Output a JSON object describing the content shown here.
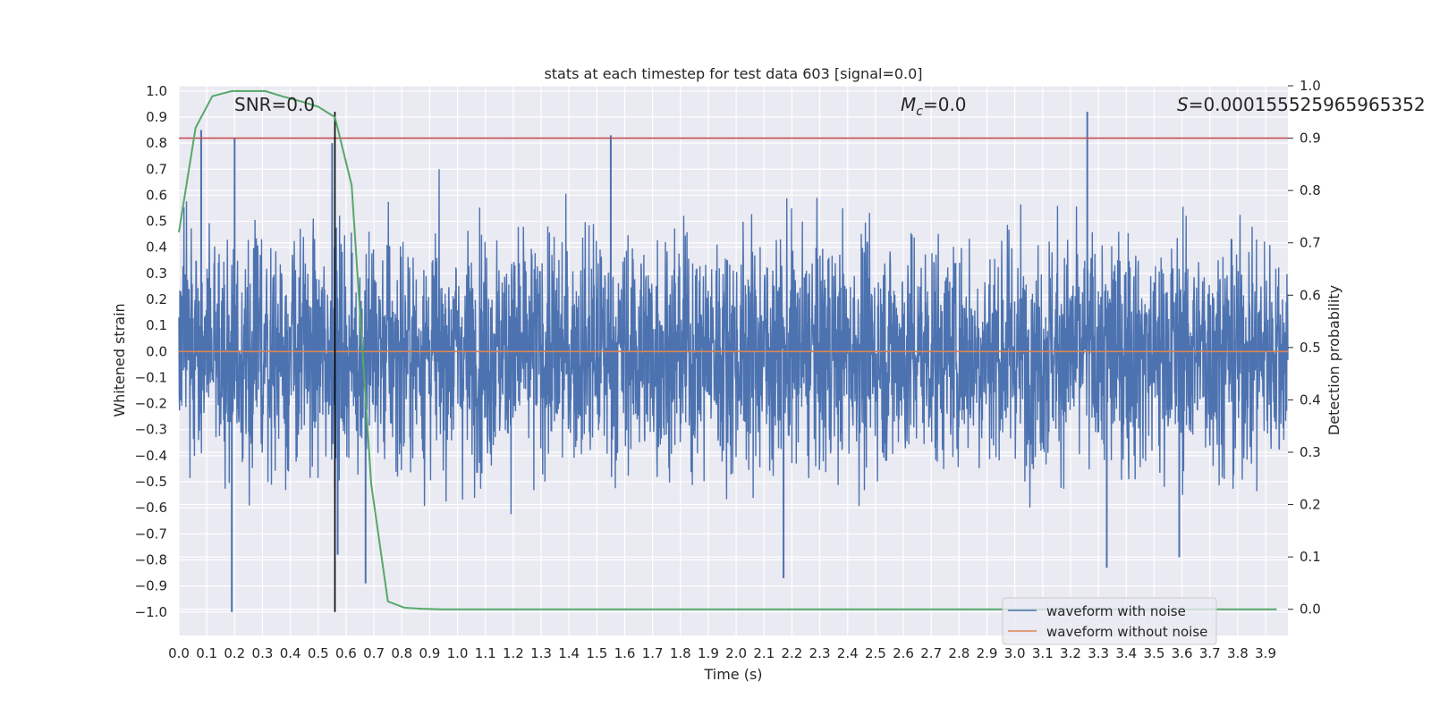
{
  "chart_data": {
    "type": "line",
    "title": "stats at each timestep for test data 603 [signal=0.0]",
    "xlabel": "Time (s)",
    "ylabel": "Whitened strain",
    "y2label": "Detection probability",
    "xlim": [
      0.0,
      3.98
    ],
    "ylim": [
      -1.09,
      1.02
    ],
    "y2lim": [
      -0.05,
      1.0
    ],
    "x_ticks": [
      "0.0",
      "0.1",
      "0.2",
      "0.3",
      "0.4",
      "0.5",
      "0.6",
      "0.7",
      "0.8",
      "0.9",
      "1.0",
      "1.1",
      "1.2",
      "1.3",
      "1.4",
      "1.5",
      "1.6",
      "1.7",
      "1.8",
      "1.9",
      "2.0",
      "2.1",
      "2.2",
      "2.3",
      "2.4",
      "2.5",
      "2.6",
      "2.7",
      "2.8",
      "2.9",
      "3.0",
      "3.1",
      "3.2",
      "3.3",
      "3.4",
      "3.5",
      "3.6",
      "3.7",
      "3.8",
      "3.9"
    ],
    "y_ticks": [
      "1.0",
      "0.9",
      "0.8",
      "0.7",
      "0.6",
      "0.5",
      "0.4",
      "0.3",
      "0.2",
      "0.1",
      "0.0",
      "−0.1",
      "−0.2",
      "−0.3",
      "−0.4",
      "−0.5",
      "−0.6",
      "−0.7",
      "−0.8",
      "−0.9",
      "−1.0"
    ],
    "y2_ticks": [
      "1.0",
      "0.9",
      "0.8",
      "0.7",
      "0.6",
      "0.5",
      "0.4",
      "0.3",
      "0.2",
      "0.1",
      "0.0"
    ],
    "grid": true,
    "legend": {
      "placement": "lower-right",
      "entries": [
        {
          "label": "waveform with noise",
          "color": "#4c72b0"
        },
        {
          "label": "waveform without noise",
          "color": "#dd8452"
        }
      ]
    },
    "annotations": {
      "snr": "SNR=0.0",
      "mc_symbol": "M",
      "mc_sub": "c",
      "mc_value": "=0.0",
      "s_symbol": "S",
      "s_value": "=0.00015552596596535​2"
    },
    "series": [
      {
        "name": "waveform with noise",
        "color": "#4c72b0",
        "note": "dense noise trace, amplitude roughly within ±0.55 with spikes up to 0.92 and down to −1.0",
        "spikes": [
          {
            "x": 0.08,
            "y": 0.85
          },
          {
            "x": 0.2,
            "y": 0.82
          },
          {
            "x": 0.19,
            "y": -1.0
          },
          {
            "x": 0.55,
            "y": 0.8
          },
          {
            "x": 0.57,
            "y": -0.78
          },
          {
            "x": 0.67,
            "y": -0.89
          },
          {
            "x": 1.55,
            "y": 0.83
          },
          {
            "x": 2.17,
            "y": -0.87
          },
          {
            "x": 3.26,
            "y": 0.92
          },
          {
            "x": 3.33,
            "y": -0.83
          },
          {
            "x": 3.59,
            "y": -0.79
          }
        ]
      },
      {
        "name": "waveform without noise",
        "color": "#dd8452",
        "x": [
          0.0,
          3.98
        ],
        "y": [
          0.0,
          0.0
        ]
      },
      {
        "name": "",
        "color": "#55a868",
        "axis": "y2",
        "x": [
          0.0,
          0.06,
          0.12,
          0.19,
          0.25,
          0.31,
          0.37,
          0.44,
          0.5,
          0.56,
          0.62,
          0.69,
          0.75,
          0.81,
          0.87,
          0.94,
          1.0,
          3.94
        ],
        "y": [
          0.72,
          0.92,
          0.98,
          0.99,
          0.99,
          0.99,
          0.98,
          0.97,
          0.96,
          0.94,
          0.81,
          0.24,
          0.015,
          0.003,
          0.001,
          0.0,
          0.0,
          0.0
        ]
      }
    ],
    "reference_lines": [
      {
        "orientation": "horizontal",
        "axis": "y2",
        "value": 0.9,
        "color": "#c44e52"
      },
      {
        "orientation": "vertical",
        "value": 0.56,
        "ymax": 0.92,
        "color": "#000000"
      }
    ]
  }
}
